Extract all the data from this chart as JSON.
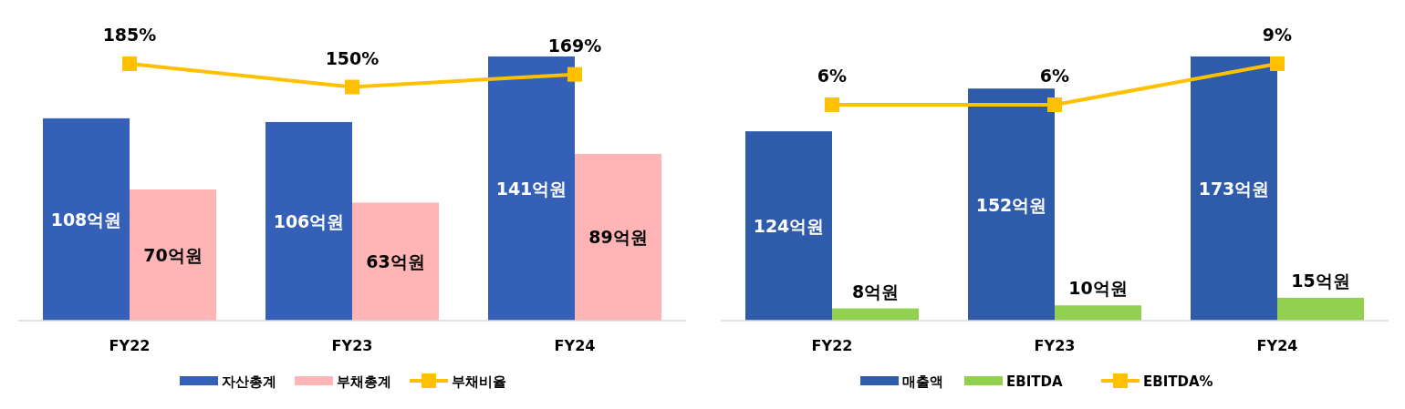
{
  "chart_data": [
    {
      "type": "bar",
      "categories": [
        "FY22",
        "FY23",
        "FY24"
      ],
      "legend": "bottom",
      "marker": "square",
      "grid": false,
      "series": [
        {
          "name": "자산총계",
          "color": "#3560b8",
          "values": [
            108,
            106,
            141
          ],
          "value_labels": [
            "108억원",
            "106억원",
            "141억원"
          ]
        },
        {
          "name": "부채총계",
          "color": "#ffb5b5",
          "values": [
            70,
            63,
            89
          ],
          "value_labels": [
            "70억원",
            "63억원",
            "89억원"
          ]
        },
        {
          "name": "부채비율",
          "type": "line",
          "axis": "y2",
          "color": "#ffc000",
          "values": [
            185,
            150,
            169
          ],
          "value_labels": [
            "185%",
            "150%",
            "169%"
          ]
        }
      ]
    },
    {
      "type": "bar",
      "categories": [
        "FY22",
        "FY23",
        "FY24"
      ],
      "legend": "bottom",
      "marker": "square",
      "grid": false,
      "series": [
        {
          "name": "매출액",
          "color": "#2e5caa",
          "values": [
            124,
            152,
            173
          ],
          "value_labels": [
            "124억원",
            "152억원",
            "173억원"
          ]
        },
        {
          "name": "EBITDA",
          "color": "#92d050",
          "values": [
            8,
            10,
            15
          ],
          "value_labels": [
            "8억원",
            "10억원",
            "15억원"
          ]
        },
        {
          "name": "EBITDA%",
          "type": "line",
          "axis": "y2",
          "color": "#ffc000",
          "values": [
            6,
            6,
            9
          ],
          "value_labels": [
            "6%",
            "6%",
            "9%"
          ]
        }
      ]
    }
  ]
}
